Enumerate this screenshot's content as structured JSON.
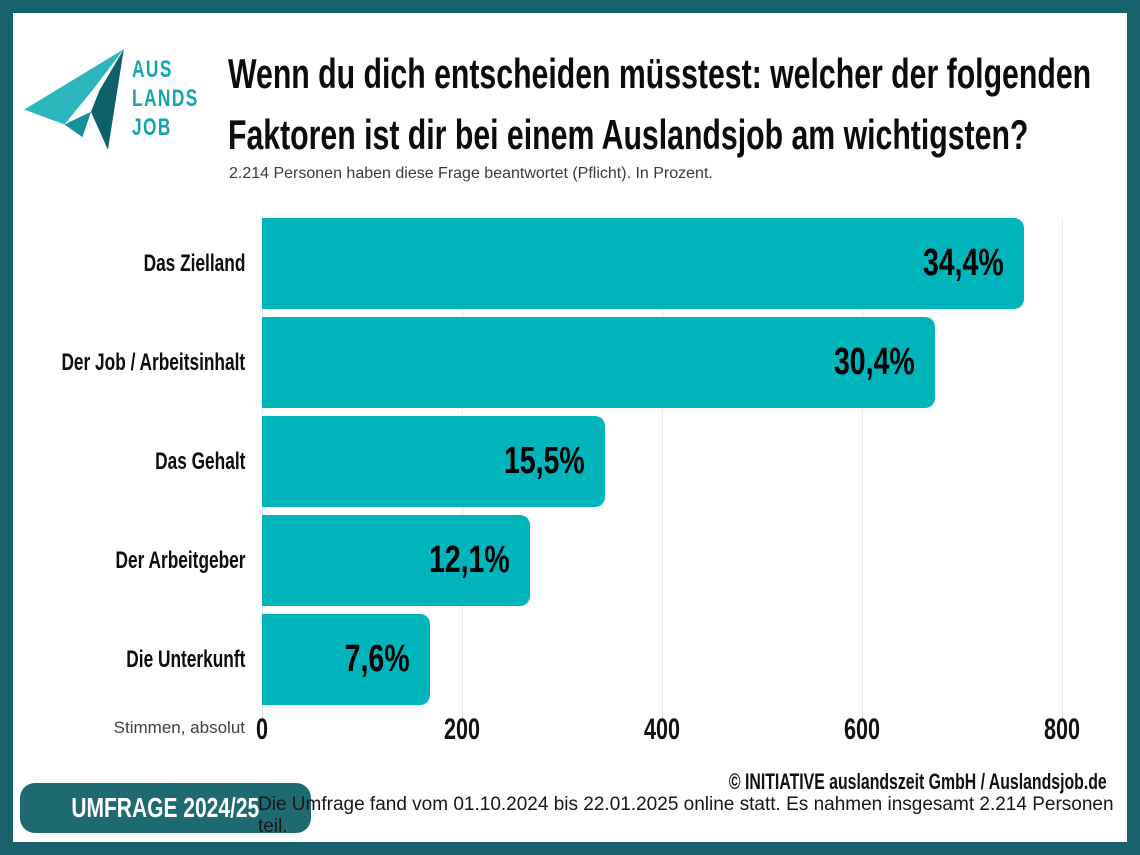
{
  "brand": {
    "wordmark_lines": [
      "AUS",
      "LANDS",
      "JOB"
    ],
    "logo_icon": "paper-plane-icon",
    "colors": {
      "accent_teal": "#00b4bc",
      "dark_teal": "#17626c",
      "logo_light": "#2cb7bf",
      "logo_dark": "#0e606a",
      "wordmark_teal": "#14a4b1"
    }
  },
  "header": {
    "title_lines": [
      "Wenn du dich entscheiden müsstest: welcher der folgenden",
      "Faktoren ist dir bei einem Auslandsjob am wichtigsten?"
    ],
    "subtitle": "2.214 Personen haben diese Frage beantwortet (Pflicht). In Prozent."
  },
  "chart_data": {
    "type": "bar",
    "orientation": "horizontal",
    "title": "Wenn du dich entscheiden müsstest: welcher der folgenden Faktoren ist dir bei einem Auslandsjob am wichtigsten?",
    "categories": [
      "Das Zielland",
      "Der Job / Arbeitsinhalt",
      "Das Gehalt",
      "Der Arbeitgeber",
      "Die Unterkunft"
    ],
    "values_percent": [
      34.4,
      30.4,
      15.5,
      12.1,
      7.6
    ],
    "value_labels": [
      "34,4%",
      "30,4%",
      "15,5%",
      "12,1%",
      "7,6%"
    ],
    "values_votes_absolute": [
      762,
      673,
      343,
      268,
      168
    ],
    "xlabel": "Stimmen, absolut",
    "x_ticks": [
      0,
      200,
      400,
      600,
      800
    ],
    "xlim": [
      0,
      800
    ],
    "grid": "vertical-light",
    "legend": "none",
    "bar_color": "#00b4bc"
  },
  "footer": {
    "copyright": "© INITIATIVE auslandszeit GmbH / Auslandsjob.de",
    "badge": "UMFRAGE 2024/25",
    "note": "Die Umfrage fand vom 01.10.2024 bis 22.01.2025 online statt. Es nahmen insgesamt 2.214 Personen teil."
  }
}
